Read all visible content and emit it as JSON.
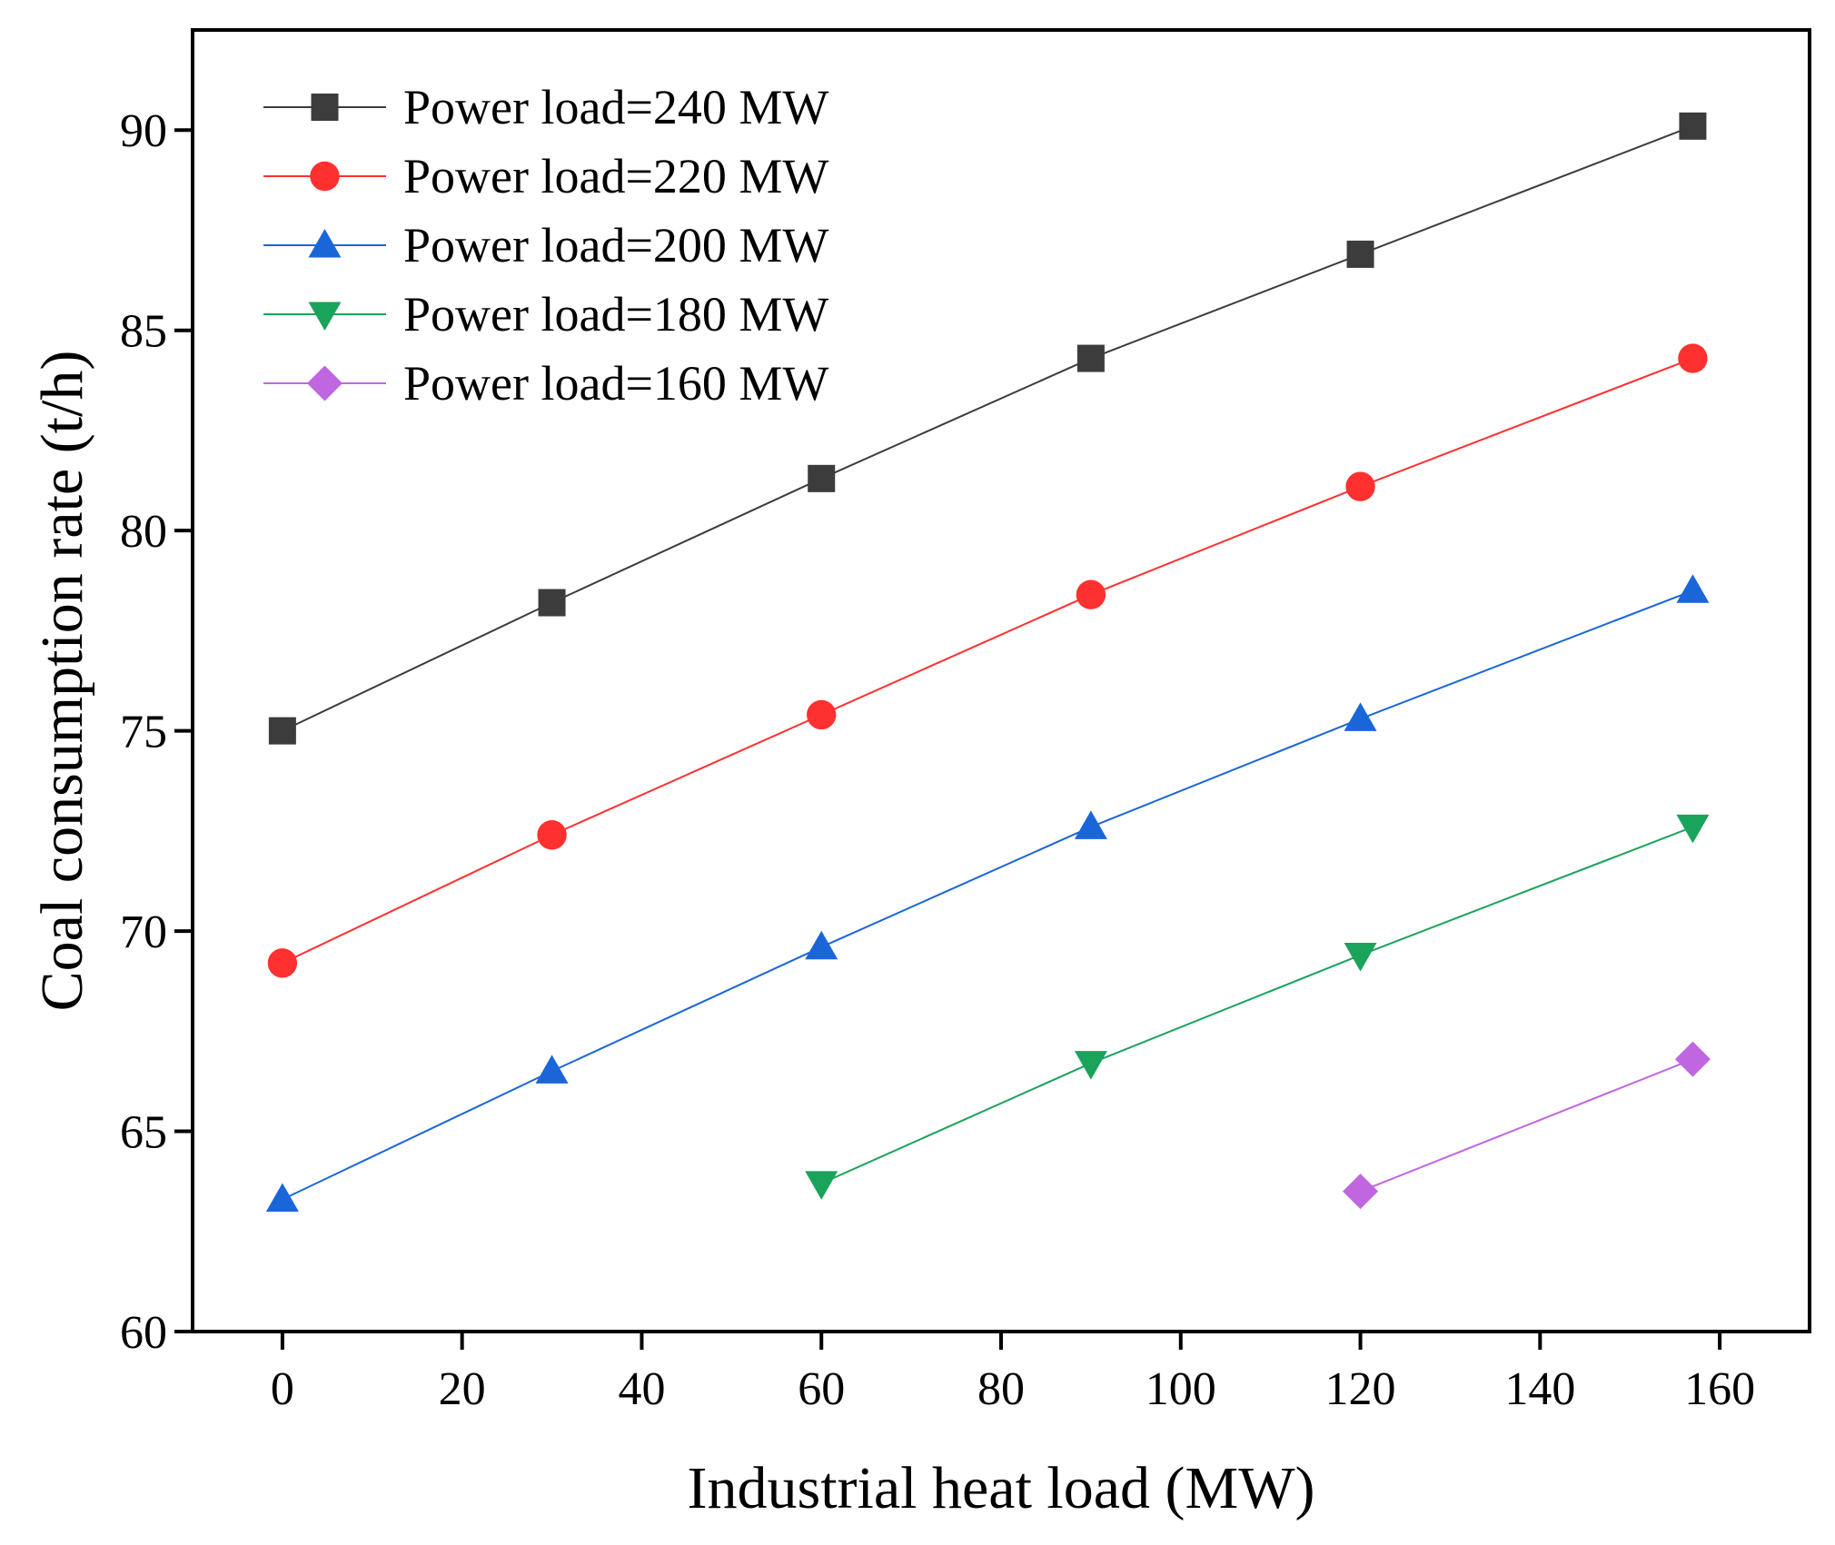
{
  "chart_data": {
    "type": "line",
    "xlabel": "Industrial heat load (MW)",
    "ylabel": "Coal consumption rate (t/h)",
    "xlim": [
      -10,
      170
    ],
    "ylim": [
      60,
      92.5
    ],
    "xticks": [
      0,
      20,
      40,
      60,
      80,
      100,
      120,
      140,
      160
    ],
    "yticks": [
      60,
      65,
      70,
      75,
      80,
      85,
      90
    ],
    "grid": false,
    "legend_position": "top-left",
    "series": [
      {
        "name": "Power load=240 MW",
        "color": "#3c3c3c",
        "marker": "square",
        "x": [
          0,
          30,
          60,
          90,
          120,
          157
        ],
        "y": [
          75.0,
          78.2,
          81.3,
          84.3,
          86.9,
          90.1
        ]
      },
      {
        "name": "Power load=220 MW",
        "color": "#ff3030",
        "marker": "circle",
        "x": [
          0,
          30,
          60,
          90,
          120,
          157
        ],
        "y": [
          69.2,
          72.4,
          75.4,
          78.4,
          81.1,
          84.3
        ]
      },
      {
        "name": "Power load=200 MW",
        "color": "#1a66d9",
        "marker": "triangle-up",
        "x": [
          0,
          30,
          60,
          90,
          120,
          157
        ],
        "y": [
          63.3,
          66.5,
          69.6,
          72.6,
          75.3,
          78.5
        ]
      },
      {
        "name": "Power load=180 MW",
        "color": "#1aa35a",
        "marker": "triangle-down",
        "x": [
          60,
          90,
          120,
          157
        ],
        "y": [
          63.7,
          66.7,
          69.4,
          72.6
        ]
      },
      {
        "name": "Power load=160 MW",
        "color": "#c066e0",
        "marker": "diamond",
        "x": [
          120,
          157
        ],
        "y": [
          63.5,
          66.8
        ]
      }
    ]
  }
}
